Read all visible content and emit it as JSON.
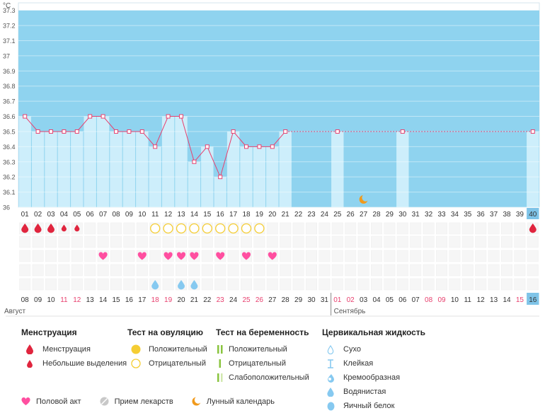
{
  "chart_data": {
    "type": "line",
    "title": "",
    "unit_label": "°C",
    "ylim": [
      36,
      37.35
    ],
    "y_ticks": [
      "37.3",
      "37.2",
      "37.1",
      "37",
      "36.9",
      "36.8",
      "36.7",
      "36.6",
      "36.5",
      "36.4",
      "36.3",
      "36.2",
      "36.1",
      "36"
    ],
    "y_tick_values": [
      37.3,
      37.2,
      37.1,
      37,
      36.9,
      36.8,
      36.7,
      36.6,
      36.5,
      36.4,
      36.3,
      36.2,
      36.1,
      36
    ],
    "cycle_days": [
      "01",
      "02",
      "03",
      "04",
      "05",
      "06",
      "07",
      "08",
      "09",
      "10",
      "11",
      "12",
      "13",
      "14",
      "15",
      "16",
      "17",
      "18",
      "19",
      "20",
      "21",
      "22",
      "23",
      "24",
      "25",
      "26",
      "27",
      "28",
      "29",
      "30",
      "31",
      "32",
      "33",
      "34",
      "35",
      "36",
      "37",
      "38",
      "39",
      "40"
    ],
    "temperatures": [
      36.6,
      36.5,
      36.5,
      36.5,
      36.5,
      36.6,
      36.6,
      36.5,
      36.5,
      36.5,
      36.4,
      36.6,
      36.6,
      36.3,
      36.4,
      36.2,
      36.5,
      36.4,
      36.4,
      36.4,
      36.5,
      null,
      null,
      null,
      36.5,
      null,
      null,
      null,
      null,
      36.5,
      null,
      null,
      null,
      null,
      null,
      null,
      null,
      null,
      null,
      36.5
    ],
    "coverline": 36.5,
    "dates": [
      "08",
      "09",
      "10",
      "11",
      "12",
      "13",
      "14",
      "15",
      "16",
      "17",
      "18",
      "19",
      "20",
      "21",
      "22",
      "23",
      "24",
      "25",
      "26",
      "27",
      "28",
      "29",
      "30",
      "31",
      "01",
      "02",
      "03",
      "04",
      "05",
      "06",
      "07",
      "08",
      "09",
      "10",
      "11",
      "12",
      "13",
      "14",
      "15",
      "16"
    ],
    "date_colors": [
      "d",
      "d",
      "d",
      "r",
      "r",
      "d",
      "d",
      "d",
      "d",
      "d",
      "r",
      "r",
      "d",
      "d",
      "d",
      "r",
      "d",
      "r",
      "r",
      "d",
      "d",
      "d",
      "d",
      "d",
      "r",
      "r",
      "d",
      "d",
      "d",
      "d",
      "d",
      "r",
      "r",
      "d",
      "d",
      "d",
      "d",
      "d",
      "r",
      "d"
    ],
    "months": [
      {
        "name": "Август",
        "start": 0
      },
      {
        "name": "Сентябрь",
        "start": 24
      }
    ],
    "current_day_index": 39,
    "moon_day_index": 26,
    "menstruation_heavy_days": [
      0,
      1,
      2,
      39
    ],
    "menstruation_light_days": [
      3,
      4
    ],
    "ovulation_negative_days": [
      10,
      11,
      12,
      13,
      14,
      15,
      16,
      17,
      18
    ],
    "intercourse_days": [
      6,
      9,
      11,
      12,
      13,
      15,
      17,
      19
    ],
    "cervical_watery_days": [
      10,
      12,
      13
    ]
  },
  "colors": {
    "band": "#8fd3ef",
    "bar": "#cdeefb",
    "line": "#e8416f",
    "red_text": "#e8416f",
    "blood": "#e0253e",
    "heart": "#ff4fa0",
    "ovulation_ring": "#f5cd33",
    "drop": "#86c9f0",
    "moon": "#f19a1c",
    "highlight": "#7fc4e8"
  },
  "legend": {
    "menstruation": {
      "title": "Менструация",
      "items": [
        "Менструация",
        "Небольшие выделения"
      ]
    },
    "ovulation_test": {
      "title": "Тест на овуляцию",
      "items": [
        "Положительный",
        "Отрицательный"
      ]
    },
    "pregnancy_test": {
      "title": "Тест на беременность",
      "items": [
        "Положительный",
        "Отрицательный",
        "Слабоположительный"
      ]
    },
    "cervical": {
      "title": "Цервикальная жидкость",
      "items": [
        "Сухо",
        "Клейкая",
        "Кремообразная",
        "Водянистая",
        "Яичный белок"
      ]
    },
    "other": [
      "Половой акт",
      "Прием лекарств",
      "Лунный календарь"
    ]
  }
}
